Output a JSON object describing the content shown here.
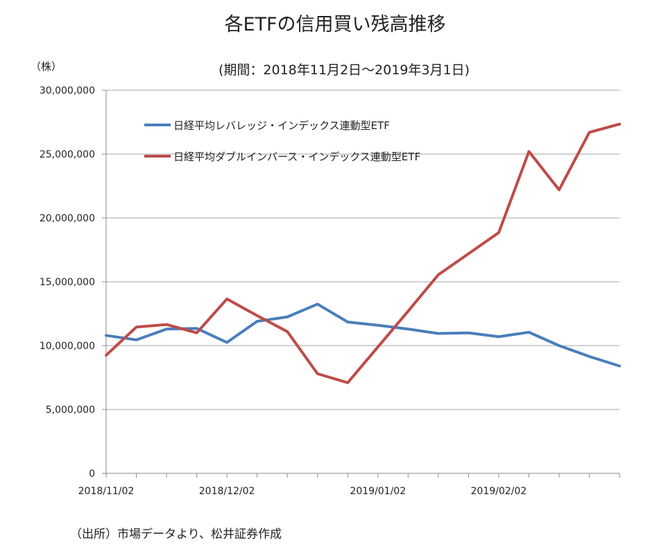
{
  "chart_data": {
    "type": "line",
    "title": "各ETFの信用買い残高推移",
    "subtitle": "(期間：2018年11月2日～2019年3月1日)",
    "unit_label": "（株）",
    "source": "（出所）市場データより、松井証券作成",
    "ylim": [
      0,
      30000000
    ],
    "y_ticks": [
      0,
      5000000,
      10000000,
      15000000,
      20000000,
      25000000,
      30000000
    ],
    "y_tick_labels": [
      "0",
      "5,000,000",
      "10,000,000",
      "15,000,000",
      "20,000,000",
      "25,000,000",
      "30,000,000"
    ],
    "x_count": 18,
    "x_tick_labels": [
      {
        "index": 0,
        "label": "2018/11/02"
      },
      {
        "index": 4,
        "label": "2018/12/02"
      },
      {
        "index": 9,
        "label": "2019/01/02"
      },
      {
        "index": 13,
        "label": "2019/02/02"
      }
    ],
    "grid": true,
    "legend_position": "top-left",
    "series": [
      {
        "name": "日経平均レバレッジ・インデックス連動型ETF",
        "color": "#4a7ebb",
        "values": [
          10800000,
          10450000,
          11300000,
          11350000,
          10250000,
          11900000,
          12250000,
          13250000,
          11850000,
          11600000,
          11300000,
          10950000,
          11000000,
          10700000,
          11050000,
          10000000,
          9150000,
          8400000
        ]
      },
      {
        "name": "日経平均ダブルインバース・インデックス連動型ETF",
        "color": "#be4b48",
        "values": [
          9250000,
          11450000,
          11650000,
          11000000,
          13650000,
          12350000,
          11100000,
          7800000,
          7100000,
          9900000,
          12700000,
          15550000,
          17200000,
          18850000,
          25200000,
          22200000,
          26700000,
          27350000
        ]
      }
    ]
  }
}
